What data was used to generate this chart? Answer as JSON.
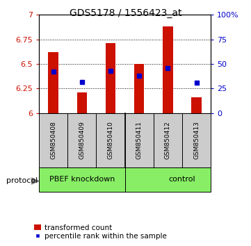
{
  "title": "GDS5178 / 1556423_at",
  "categories": [
    "GSM850408",
    "GSM850409",
    "GSM850410",
    "GSM850411",
    "GSM850412",
    "GSM850413"
  ],
  "bar_values": [
    6.62,
    6.21,
    6.71,
    6.5,
    6.88,
    6.16
  ],
  "blue_values": [
    6.42,
    6.32,
    6.43,
    6.38,
    6.46,
    6.31
  ],
  "y_min": 6.0,
  "y_max": 7.0,
  "y_ticks": [
    6.0,
    6.25,
    6.5,
    6.75,
    7.0
  ],
  "right_ticks": [
    0,
    25,
    50,
    75,
    100
  ],
  "bar_color": "#cc1100",
  "blue_color": "#0000cc",
  "group1_label": "PBEF knockdown",
  "group2_label": "control",
  "group_bg_color": "#88ee66",
  "sample_bg_color": "#cccccc",
  "legend_red_label": "transformed count",
  "legend_blue_label": "percentile rank within the sample",
  "protocol_label": "protocol"
}
